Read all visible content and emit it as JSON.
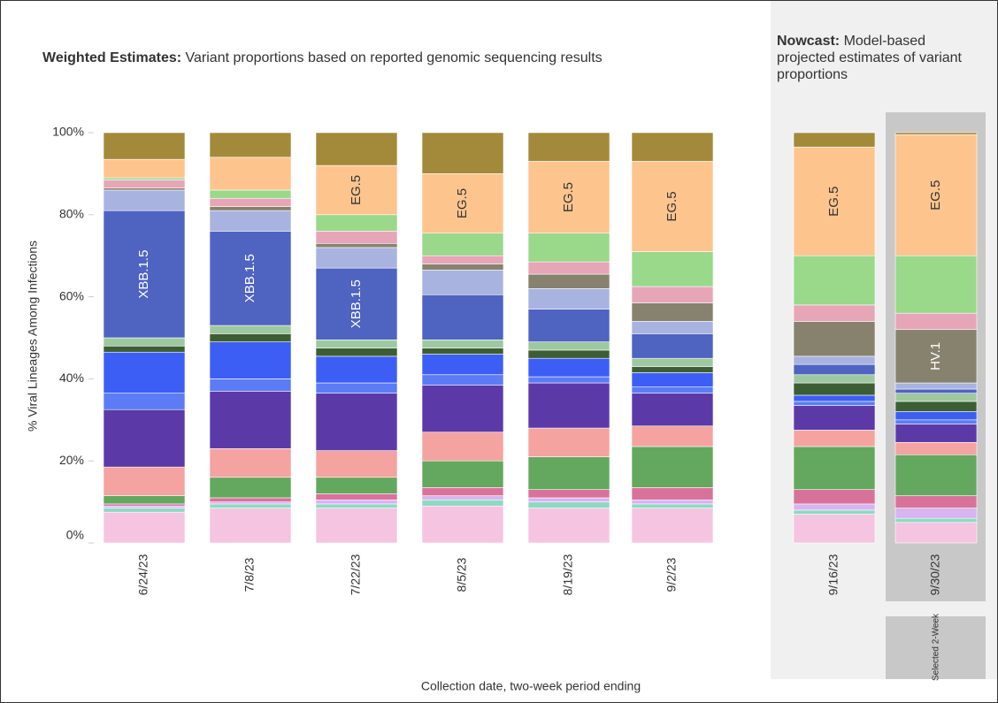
{
  "chart_data": {
    "type": "stacked-bar",
    "title_bold": "Weighted Estimates:",
    "title": "Variant proportions based on reported genomic sequencing results",
    "nowcast_title_bold": "Nowcast:",
    "nowcast_title": "Model-based projected estimates of variant proportions",
    "y_label": "% Viral Lineages Among Infections",
    "x_label": "Collection date, two-week period ending",
    "selected_label": "Selected 2-Week",
    "categories": [
      "6/24/23",
      "7/8/23",
      "7/22/23",
      "8/5/23",
      "8/19/23",
      "9/2/23",
      "9/16/23",
      "9/30/23"
    ],
    "nowcast_start": 6,
    "selected": 7,
    "ylim": [
      0,
      100
    ],
    "yticks": [
      {
        "value": 0,
        "label": "0%"
      },
      {
        "value": 20,
        "label": "20%"
      },
      {
        "value": 40,
        "label": "40%"
      },
      {
        "value": 60,
        "label": "60%"
      },
      {
        "value": 80,
        "label": "80%"
      },
      {
        "value": 100,
        "label": "100%"
      }
    ],
    "series": [
      {
        "color": "#f5c4e0",
        "values": [
          7.5,
          8.5,
          8.5,
          9,
          8.5,
          8.5,
          7,
          5
        ]
      },
      {
        "color": "#8fd9c4",
        "values": [
          1,
          1,
          1,
          1.5,
          1.5,
          1,
          1,
          1
        ]
      },
      {
        "color": "#d8b4f0",
        "values": [
          0.5,
          0.5,
          1,
          1,
          1,
          1,
          1.5,
          2.5
        ]
      },
      {
        "color": "#d9729a",
        "values": [
          0.5,
          1,
          1.5,
          2,
          2,
          3,
          3.5,
          3
        ]
      },
      {
        "color": "#63a85e",
        "values": [
          2,
          5,
          4,
          6.5,
          8,
          10,
          10.5,
          10
        ]
      },
      {
        "color": "#f4a3a0",
        "values": [
          7,
          7,
          6.5,
          7,
          7,
          5,
          4,
          3
        ]
      },
      {
        "color": "#5b3aa8",
        "values": [
          14,
          14,
          14,
          11.5,
          11,
          8,
          6,
          4.5
        ]
      },
      {
        "color": "#5b7cf5",
        "values": [
          4,
          3,
          2.5,
          2.5,
          1.5,
          1.5,
          1,
          1
        ]
      },
      {
        "color": "#3d5ef5",
        "values": [
          10,
          9,
          6.5,
          5,
          4.5,
          3.5,
          1.5,
          2
        ]
      },
      {
        "color": "#3d5e35",
        "values": [
          1.5,
          2,
          2,
          1.5,
          2,
          1.5,
          3,
          2.5
        ]
      },
      {
        "color": "#9ec9a0",
        "values": [
          2,
          2,
          2,
          2,
          2,
          2,
          2,
          2
        ]
      },
      {
        "color": "#4f63c1",
        "values": [
          31,
          23,
          17.5,
          11,
          8,
          6,
          2.5,
          1
        ],
        "labels": [
          "XBB.1.5",
          "XBB.1.5",
          "XBB.1.5",
          null,
          null,
          null,
          null,
          null
        ]
      },
      {
        "color": "#a9b3e0",
        "values": [
          5,
          5,
          5,
          6,
          5,
          3,
          2,
          1.5
        ]
      },
      {
        "color": "#87826e",
        "values": [
          0.5,
          1,
          1,
          1.5,
          3.5,
          4.5,
          8.5,
          13
        ],
        "labels": [
          null,
          null,
          null,
          null,
          null,
          null,
          null,
          "HV.1"
        ]
      },
      {
        "color": "#e6a6b8",
        "values": [
          2,
          2,
          3,
          2,
          3,
          4,
          4,
          4
        ]
      },
      {
        "color": "#9ad88a",
        "values": [
          0.5,
          2,
          4,
          5.5,
          7,
          8.5,
          12,
          14
        ]
      },
      {
        "color": "#fdc48e",
        "values": [
          4.5,
          8,
          12,
          14.5,
          17.5,
          22,
          26.5,
          29.5
        ],
        "labels": [
          null,
          null,
          "EG.5",
          "EG.5",
          "EG.5",
          "EG.5",
          "EG.5",
          "EG.5"
        ]
      },
      {
        "color": "#a38a3a",
        "values": [
          6.5,
          6,
          8,
          10,
          7,
          7,
          3.5,
          0.5
        ]
      }
    ]
  }
}
